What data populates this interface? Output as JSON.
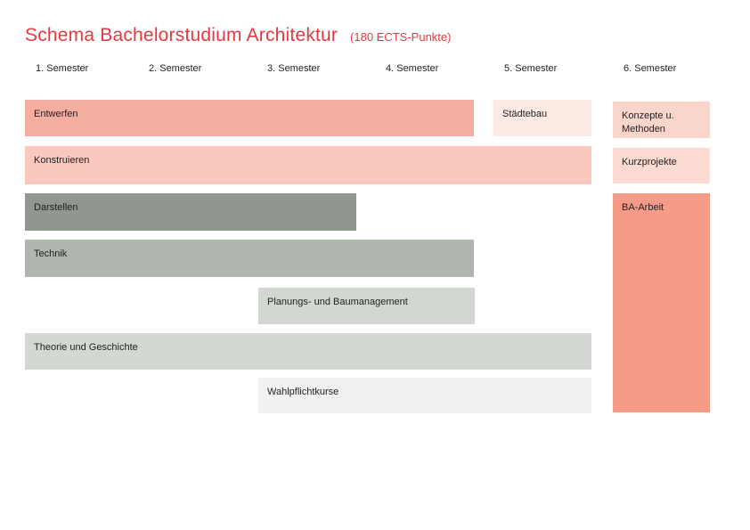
{
  "title": {
    "text": "Schema Bachelorstudium Architektur",
    "subtitle": "(180 ECTS-Punkte)",
    "color": "#E5393F"
  },
  "semesters": [
    "1. Semester",
    "2. Semester",
    "3. Semester",
    "4. Semester",
    "5. Semester",
    "6. Semester"
  ],
  "modules": [
    {
      "id": "entwerfen",
      "label": "Entwerfen",
      "semester_start": 1,
      "semester_end": 4,
      "color": "#F6AEA0"
    },
    {
      "id": "staedtebau",
      "label": "Städtebau",
      "semester_start": 5,
      "semester_end": 5,
      "color": "#FCEAE4"
    },
    {
      "id": "konzepte",
      "label": "Konzepte u. Methoden",
      "semester_start": 6,
      "semester_end": 6,
      "color": "#FAD5CC"
    },
    {
      "id": "konstruieren",
      "label": "Konstruieren",
      "semester_start": 1,
      "semester_end": 5,
      "color": "#F9C9BE"
    },
    {
      "id": "kurzprojekte",
      "label": "Kurzprojekte",
      "semester_start": 6,
      "semester_end": 6,
      "color": "#FBDAD2"
    },
    {
      "id": "darstellen",
      "label": "Darstellen",
      "semester_start": 1,
      "semester_end": 3,
      "color": "#8F978F"
    },
    {
      "id": "ba-arbeit",
      "label": "BA-Arbeit",
      "semester_start": 6,
      "semester_end": 6,
      "color": "#F69B88"
    },
    {
      "id": "technik",
      "label": "Technik",
      "semester_start": 1,
      "semester_end": 4,
      "color": "#AFB7AE"
    },
    {
      "id": "planung",
      "label": "Planungs- und Baumanagement",
      "semester_start": 3,
      "semester_end": 4,
      "color": "#D2D7D1"
    },
    {
      "id": "theorie",
      "label": "Theorie und Geschichte",
      "semester_start": 1,
      "semester_end": 5,
      "color": "#D3D8D2"
    },
    {
      "id": "wahlpflicht",
      "label": "Wahlpflichtkurse",
      "semester_start": 3,
      "semester_end": 5,
      "color": "#F0F2F0"
    }
  ]
}
